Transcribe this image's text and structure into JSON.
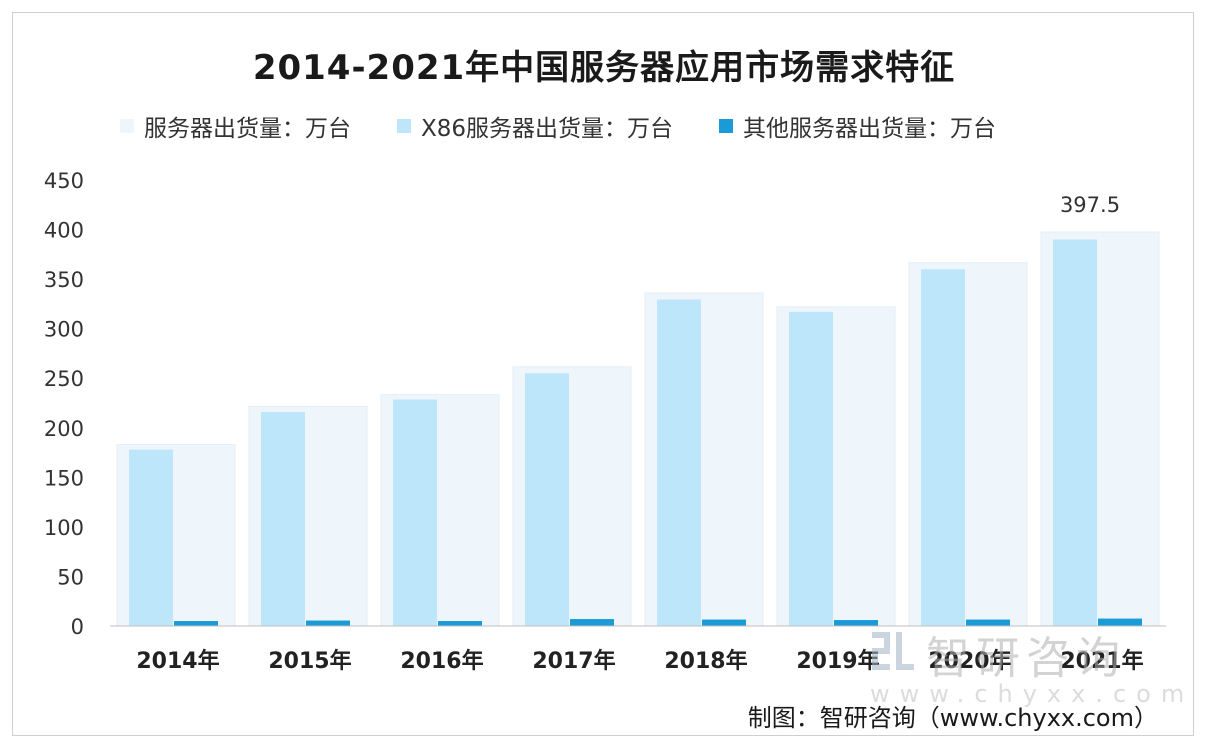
{
  "chart_data": {
    "type": "bar",
    "title": "2014-2021年中国服务器应用市场需求特征",
    "categories": [
      "2014年",
      "2015年",
      "2016年",
      "2017年",
      "2018年",
      "2019年",
      "2020年",
      "2021年"
    ],
    "series": [
      {
        "name": "服务器出货量：万台",
        "values": [
          183.0,
          221.5,
          233.5,
          261.5,
          336.0,
          322.0,
          366.5,
          397.5
        ],
        "color": "#eef6fc"
      },
      {
        "name": "X86服务器出货量：万台",
        "values": [
          178.0,
          216.0,
          228.5,
          255.0,
          329.5,
          317.0,
          360.0,
          390.0
        ],
        "color": "#bde6fa"
      },
      {
        "name": "其他服务器出货量：万台",
        "values": [
          5.0,
          5.5,
          5.0,
          7.0,
          6.5,
          6.0,
          6.5,
          7.5
        ],
        "color": "#1a9bd7"
      }
    ],
    "ylim": [
      0,
      450
    ],
    "yticks": [
      "0",
      "50",
      "100",
      "150",
      "200",
      "250",
      "300",
      "350",
      "400",
      "450"
    ],
    "grid": false,
    "legend_position": "top-left",
    "annotations": [
      {
        "category": "2021年",
        "series": "服务器出货量：万台",
        "text": "397.5"
      }
    ]
  },
  "credit": "制图：智研咨询（www.chyxx.com）",
  "watermark": {
    "text": "智研咨询",
    "url": "www.chyxx.com"
  }
}
